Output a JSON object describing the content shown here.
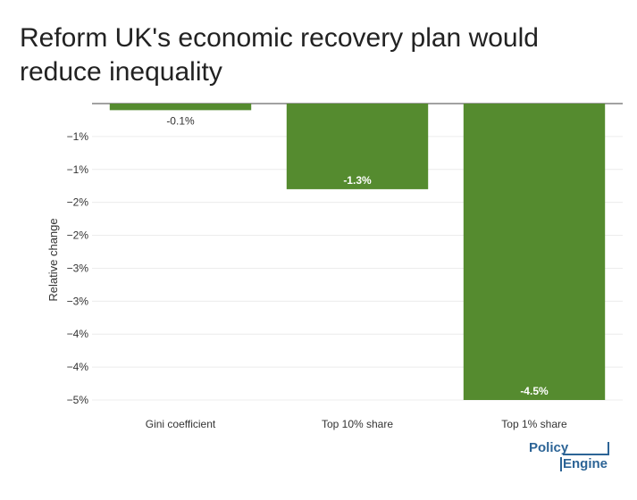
{
  "chart_data": {
    "type": "bar",
    "title": "Reform UK's economic recovery plan would reduce inequality",
    "xlabel": "",
    "ylabel": "Relative change",
    "categories": [
      "Gini coefficient",
      "Top 10% share",
      "Top 1% share"
    ],
    "values": [
      -0.1,
      -1.3,
      -4.5
    ],
    "data_labels": [
      "-0.1%",
      "-1.3%",
      "-4.5%"
    ],
    "ylim": [
      -4.5,
      0
    ],
    "yticks": [
      {
        "value": -0.5,
        "label": "−1%"
      },
      {
        "value": -1.0,
        "label": "−1%"
      },
      {
        "value": -1.5,
        "label": "−2%"
      },
      {
        "value": -2.0,
        "label": "−2%"
      },
      {
        "value": -2.5,
        "label": "−3%"
      },
      {
        "value": -3.0,
        "label": "−3%"
      },
      {
        "value": -3.5,
        "label": "−4%"
      },
      {
        "value": -4.0,
        "label": "−4%"
      },
      {
        "value": -4.5,
        "label": "−5%"
      }
    ],
    "grid": true,
    "bar_color": "#558B2F",
    "label_inside_color": "#ffffff",
    "label_outside_color": "#333333"
  },
  "logo": {
    "line1": "Policy",
    "line2": "Engine",
    "color": "#2C6496"
  }
}
